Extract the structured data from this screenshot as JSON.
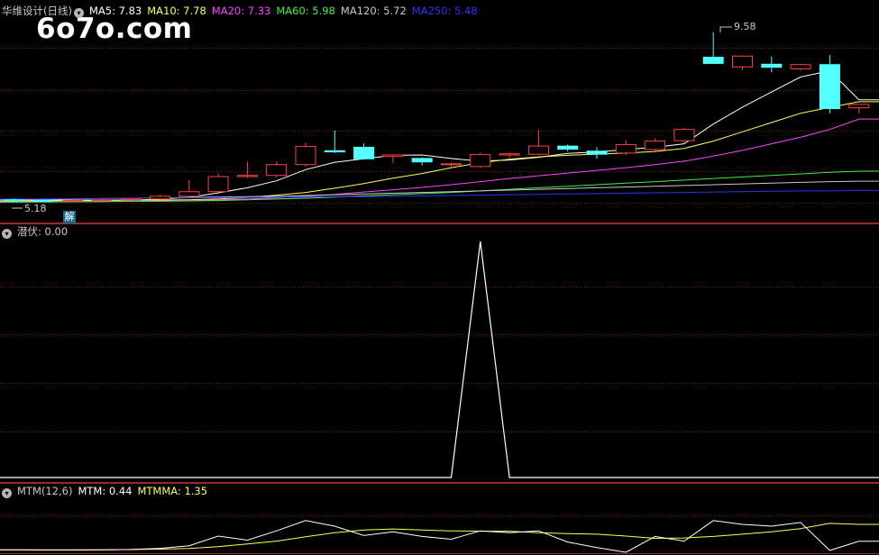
{
  "chart_data": {
    "type": "candlestick",
    "main": {
      "title": "华维设计(日线)",
      "ma_legend": [
        {
          "label": "MA5: 7.83",
          "color": "#ffffff"
        },
        {
          "label": "MA10: 7.78",
          "color": "#ffff55"
        },
        {
          "label": "MA20: 7.33",
          "color": "#ff44ff"
        },
        {
          "label": "MA60: 5.98",
          "color": "#44ee44"
        },
        {
          "label": "MA120: 5.72",
          "color": "#c8c8c8"
        },
        {
          "label": "MA250: 5.48",
          "color": "#3030ff"
        }
      ],
      "high_label": "9.58",
      "low_label": "5.18",
      "ylim": [
        5.0,
        9.9
      ],
      "candles": [
        {
          "o": 5.24,
          "h": 5.27,
          "l": 5.18,
          "c": 5.22
        },
        {
          "o": 5.22,
          "h": 5.25,
          "l": 5.19,
          "c": 5.21
        },
        {
          "o": 5.21,
          "h": 5.26,
          "l": 5.2,
          "c": 5.23
        },
        {
          "o": 5.23,
          "h": 5.27,
          "l": 5.21,
          "c": 5.24
        },
        {
          "o": 5.24,
          "h": 5.28,
          "l": 5.22,
          "c": 5.26
        },
        {
          "o": 5.26,
          "h": 5.38,
          "l": 5.25,
          "c": 5.33
        },
        {
          "o": 5.33,
          "h": 5.75,
          "l": 5.3,
          "c": 5.45
        },
        {
          "o": 5.45,
          "h": 5.92,
          "l": 5.42,
          "c": 5.84
        },
        {
          "o": 5.84,
          "h": 6.23,
          "l": 5.8,
          "c": 5.87
        },
        {
          "o": 5.87,
          "h": 6.23,
          "l": 5.82,
          "c": 6.15
        },
        {
          "o": 6.15,
          "h": 6.72,
          "l": 6.1,
          "c": 6.62
        },
        {
          "o": 6.51,
          "h": 7.03,
          "l": 6.45,
          "c": 6.48
        },
        {
          "o": 6.6,
          "h": 6.7,
          "l": 6.28,
          "c": 6.3
        },
        {
          "o": 6.36,
          "h": 6.42,
          "l": 6.19,
          "c": 6.4
        },
        {
          "o": 6.31,
          "h": 6.34,
          "l": 6.13,
          "c": 6.22
        },
        {
          "o": 6.17,
          "h": 6.2,
          "l": 6.1,
          "c": 6.17
        },
        {
          "o": 6.1,
          "h": 6.46,
          "l": 6.06,
          "c": 6.41
        },
        {
          "o": 6.4,
          "h": 6.46,
          "l": 6.33,
          "c": 6.43
        },
        {
          "o": 6.42,
          "h": 7.05,
          "l": 6.4,
          "c": 6.63
        },
        {
          "o": 6.63,
          "h": 6.67,
          "l": 6.49,
          "c": 6.55
        },
        {
          "o": 6.5,
          "h": 6.6,
          "l": 6.3,
          "c": 6.42
        },
        {
          "o": 6.45,
          "h": 6.78,
          "l": 6.4,
          "c": 6.67
        },
        {
          "o": 6.54,
          "h": 6.83,
          "l": 6.5,
          "c": 6.76
        },
        {
          "o": 6.77,
          "h": 7.1,
          "l": 6.72,
          "c": 7.06
        },
        {
          "o": 8.93,
          "h": 9.58,
          "l": 8.77,
          "c": 8.77
        },
        {
          "o": 8.68,
          "h": 8.98,
          "l": 8.6,
          "c": 8.96
        },
        {
          "o": 8.75,
          "h": 8.95,
          "l": 8.54,
          "c": 8.67
        },
        {
          "o": 8.63,
          "h": 8.77,
          "l": 8.58,
          "c": 8.74
        },
        {
          "o": 8.74,
          "h": 8.99,
          "l": 7.48,
          "c": 7.6
        },
        {
          "o": 7.62,
          "h": 7.72,
          "l": 7.48,
          "c": 7.71
        }
      ],
      "ma_values": {
        "MA5": [
          5.23,
          5.23,
          5.23,
          5.23,
          5.23,
          5.25,
          5.3,
          5.42,
          5.55,
          5.73,
          6.02,
          6.21,
          6.3,
          6.39,
          6.4,
          6.31,
          6.24,
          6.27,
          6.34,
          6.44,
          6.48,
          6.54,
          6.6,
          6.69,
          7.2,
          7.64,
          8.03,
          8.42,
          8.58,
          7.83
        ],
        "MA10": [
          5.2,
          5.21,
          5.22,
          5.22,
          5.23,
          5.23,
          5.24,
          5.26,
          5.3,
          5.36,
          5.43,
          5.54,
          5.66,
          5.8,
          5.92,
          6.07,
          6.2,
          6.29,
          6.35,
          6.39,
          6.42,
          6.45,
          6.49,
          6.57,
          6.76,
          7.0,
          7.24,
          7.48,
          7.63,
          7.78
        ],
        "MA20": [
          5.18,
          5.19,
          5.19,
          5.2,
          5.2,
          5.21,
          5.22,
          5.24,
          5.26,
          5.29,
          5.33,
          5.38,
          5.44,
          5.5,
          5.56,
          5.63,
          5.71,
          5.79,
          5.86,
          5.93,
          6.0,
          6.07,
          6.15,
          6.24,
          6.37,
          6.52,
          6.69,
          6.86,
          7.06,
          7.33
        ],
        "MA60": [
          5.18,
          5.18,
          5.19,
          5.19,
          5.2,
          5.2,
          5.21,
          5.22,
          5.24,
          5.26,
          5.28,
          5.31,
          5.34,
          5.37,
          5.4,
          5.43,
          5.47,
          5.51,
          5.55,
          5.59,
          5.63,
          5.67,
          5.71,
          5.75,
          5.79,
          5.83,
          5.87,
          5.91,
          5.95,
          5.98
        ],
        "MA120": [
          5.24,
          5.25,
          5.26,
          5.27,
          5.28,
          5.29,
          5.3,
          5.31,
          5.32,
          5.33,
          5.35,
          5.37,
          5.39,
          5.41,
          5.43,
          5.45,
          5.47,
          5.49,
          5.51,
          5.53,
          5.55,
          5.57,
          5.59,
          5.61,
          5.63,
          5.65,
          5.67,
          5.69,
          5.71,
          5.72
        ],
        "MA250": [
          5.26,
          5.26,
          5.27,
          5.27,
          5.28,
          5.28,
          5.29,
          5.29,
          5.3,
          5.3,
          5.31,
          5.32,
          5.32,
          5.33,
          5.34,
          5.35,
          5.36,
          5.37,
          5.38,
          5.39,
          5.4,
          5.41,
          5.42,
          5.43,
          5.44,
          5.45,
          5.46,
          5.47,
          5.47,
          5.48
        ]
      }
    },
    "qianfu": {
      "legend_name": "潜伏",
      "legend_value": ": 0.00",
      "color": "#ffffff",
      "ylim": [
        0,
        1
      ],
      "values": [
        0,
        0,
        0,
        0,
        0,
        0,
        0,
        0,
        0,
        0,
        0,
        0,
        0,
        0,
        0,
        0,
        1,
        0,
        0,
        0,
        0,
        0,
        0,
        0,
        0,
        0,
        0,
        0,
        0,
        0
      ]
    },
    "mtm": {
      "title": "MTM(12,6)",
      "mtm_label": "MTM: 0.44",
      "mtmma_label": "MTMMA: 1.35",
      "mtm_color": "#ffffff",
      "mtmma_color": "#ffff55",
      "ylim": [
        -0.2,
        2.8
      ],
      "mtm": [
        -0.02,
        -0.03,
        -0.03,
        -0.02,
        0.0,
        0.06,
        0.2,
        0.72,
        0.5,
        1.0,
        1.55,
        1.25,
        0.75,
        0.95,
        0.7,
        0.55,
        1.0,
        0.9,
        1.0,
        0.4,
        0.1,
        -0.15,
        0.7,
        0.45,
        1.55,
        1.35,
        1.25,
        1.45,
        -0.05,
        0.44
      ],
      "mtmma": [
        -0.02,
        -0.02,
        -0.02,
        -0.02,
        0.0,
        0.02,
        0.05,
        0.15,
        0.3,
        0.45,
        0.68,
        0.9,
        1.05,
        1.1,
        1.05,
        1.0,
        0.98,
        0.98,
        0.9,
        0.85,
        0.82,
        0.72,
        0.6,
        0.62,
        0.7,
        0.82,
        0.95,
        1.12,
        1.4,
        1.35
      ]
    }
  },
  "watermark": "6o7o.com",
  "signal_marker": "解",
  "colors": {
    "up": "#ff4040",
    "down": "#54ffff",
    "grid": "#8a1a1a",
    "border": "#9a2a2a"
  }
}
